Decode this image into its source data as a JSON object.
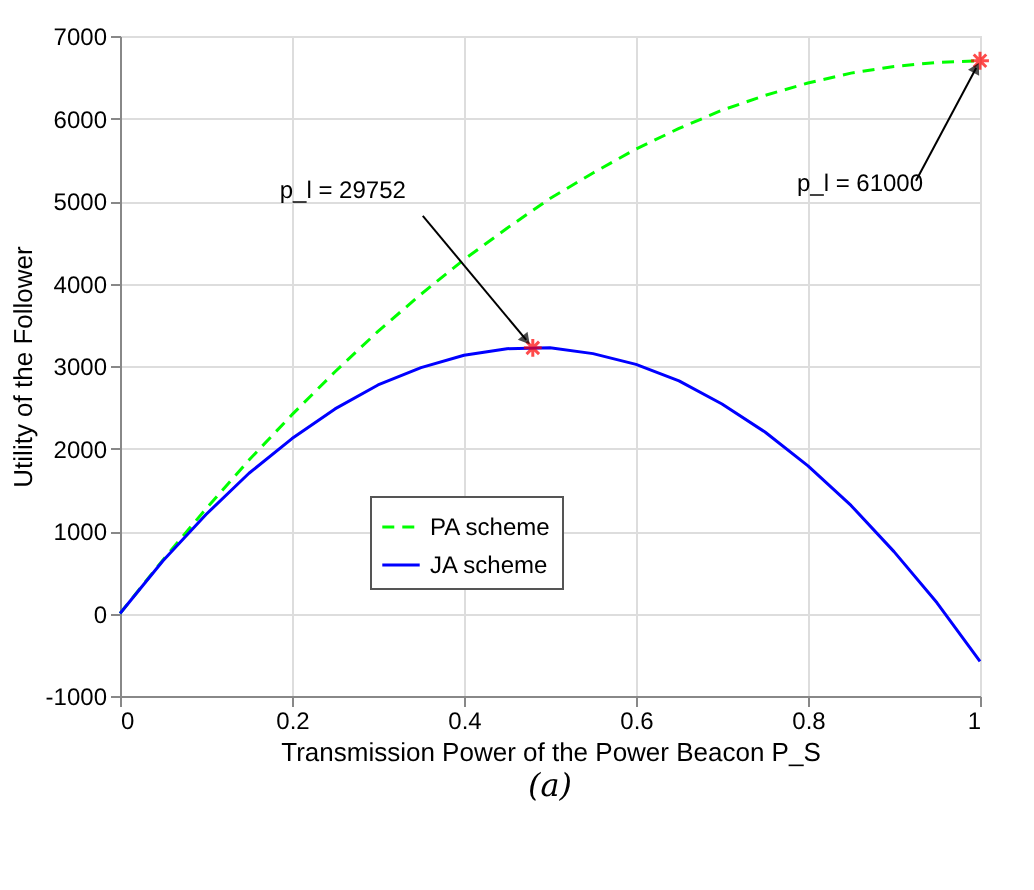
{
  "chart_data": {
    "type": "line",
    "xlabel": "Transmission Power of the Power Beacon P_S",
    "ylabel": "Utility of the Follower",
    "x": [
      0,
      0.05,
      0.1,
      0.15,
      0.2,
      0.25,
      0.3,
      0.35,
      0.4,
      0.45,
      0.5,
      0.55,
      0.6,
      0.65,
      0.7,
      0.75,
      0.8,
      0.85,
      0.9,
      0.95,
      1
    ],
    "series": [
      {
        "name": "PA scheme",
        "color": "#00ff00",
        "line_style": "dashed",
        "values": [
          0,
          650,
          1270,
          1860,
          2410,
          2930,
          3420,
          3870,
          4290,
          4670,
          5030,
          5340,
          5630,
          5880,
          6100,
          6280,
          6430,
          6550,
          6630,
          6680,
          6700
        ]
      },
      {
        "name": "JA scheme",
        "color": "#0000ff",
        "line_style": "solid",
        "values": [
          0,
          640,
          1200,
          1700,
          2120,
          2480,
          2770,
          2980,
          3130,
          3210,
          3220,
          3150,
          3020,
          2820,
          2540,
          2200,
          1790,
          1310,
          750,
          130,
          -580
        ]
      },
      {
        "type": "scatter",
        "marker": "cross",
        "color": "#ff0000",
        "x": [
          0.48,
          1
        ],
        "values": [
          3220,
          6700
        ]
      }
    ],
    "annotations": [
      {
        "text": "p_l = 29752",
        "x": 0.48,
        "y": 3220
      },
      {
        "text": "p_l = 61000",
        "x": 1,
        "y": 6700
      },
      "(a)"
    ],
    "xlim": [
      0,
      1
    ],
    "xticks": [
      0,
      0.2,
      0.4,
      0.6,
      0.8,
      1
    ],
    "ylim": [
      -1000,
      7000
    ],
    "yticks": [
      -1000,
      0,
      1000,
      2000,
      3000,
      4000,
      5000,
      6000,
      7000
    ],
    "grid": true,
    "legend": "bottom"
  }
}
